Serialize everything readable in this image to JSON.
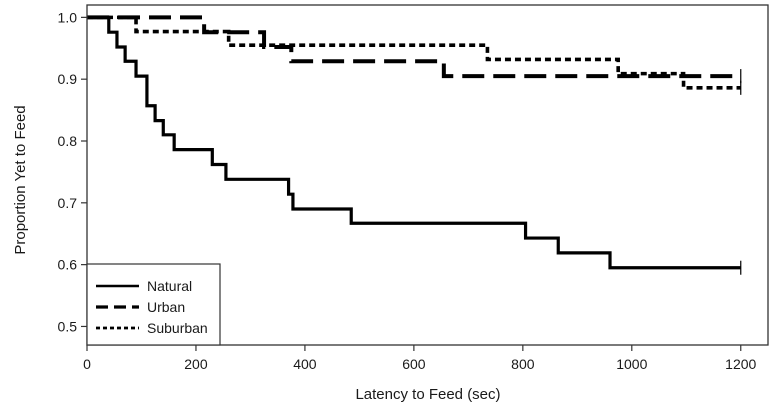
{
  "chart_data": {
    "type": "line",
    "title": "",
    "xlabel": "Latency to Feed (sec)",
    "ylabel": "Proportion Yet to Feed",
    "xlim": [
      0,
      1250
    ],
    "ylim": [
      0.47,
      1.02
    ],
    "xticks": [
      0,
      200,
      400,
      600,
      800,
      1000,
      1200
    ],
    "xtick_labels": [
      "0",
      "200",
      "400",
      "600",
      "800",
      "1000",
      "1200"
    ],
    "yticks": [
      0.5,
      0.6,
      0.7,
      0.8,
      0.9,
      1.0
    ],
    "ytick_labels": [
      "0.5",
      "0.6",
      "0.7",
      "0.8",
      "0.9",
      "1.0"
    ],
    "step": true,
    "censored_at": 1200,
    "legend_position": "bottom-left",
    "series": [
      {
        "name": "Natural",
        "style": "solid",
        "color": "#000000",
        "x": [
          0,
          40,
          55,
          70,
          90,
          110,
          125,
          140,
          160,
          210,
          230,
          255,
          370,
          378,
          485,
          805,
          865,
          960,
          1200
        ],
        "y": [
          1.0,
          0.976,
          0.952,
          0.929,
          0.905,
          0.857,
          0.833,
          0.81,
          0.786,
          0.786,
          0.762,
          0.738,
          0.714,
          0.69,
          0.667,
          0.643,
          0.619,
          0.595,
          0.595
        ]
      },
      {
        "name": "Urban",
        "style": "dashed",
        "color": "#000000",
        "x": [
          0,
          215,
          325,
          375,
          655,
          965,
          1200
        ],
        "y": [
          1.0,
          0.976,
          0.952,
          0.929,
          0.905,
          0.905,
          0.905
        ]
      },
      {
        "name": "Suburban",
        "style": "dotted",
        "color": "#000000",
        "x": [
          0,
          90,
          260,
          375,
          735,
          975,
          1095,
          1200
        ],
        "y": [
          1.0,
          0.977,
          0.955,
          0.955,
          0.932,
          0.909,
          0.886,
          0.886
        ]
      }
    ]
  }
}
